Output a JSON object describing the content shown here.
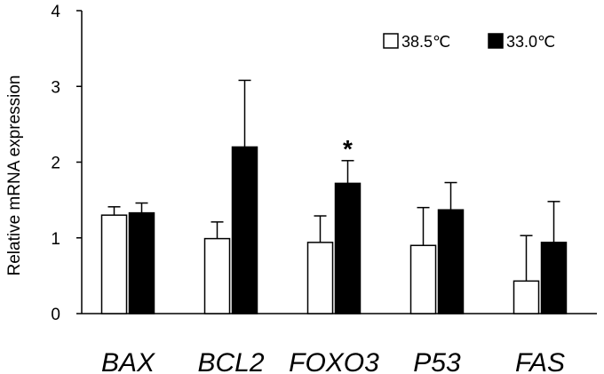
{
  "chart_data": {
    "type": "bar",
    "title": "",
    "xlabel": "",
    "ylabel": "Relative mRNA expression",
    "ylim": [
      0,
      4
    ],
    "yticks": [
      0,
      1,
      2,
      3,
      4
    ],
    "grid": false,
    "legend_position": "top-right",
    "categories": [
      "BAX",
      "BCL2",
      "FOXO3",
      "P53",
      "FAS"
    ],
    "series": [
      {
        "name": "38.5℃",
        "fill": "#ffffff",
        "stroke": "#000000",
        "values": [
          1.3,
          0.99,
          0.94,
          0.9,
          0.43
        ],
        "errors": [
          0.11,
          0.22,
          0.35,
          0.5,
          0.6
        ]
      },
      {
        "name": "33.0℃",
        "fill": "#000000",
        "stroke": "#000000",
        "values": [
          1.33,
          2.2,
          1.72,
          1.37,
          0.94
        ],
        "errors": [
          0.13,
          0.88,
          0.3,
          0.36,
          0.54
        ]
      }
    ],
    "annotations": [
      {
        "category": "FOXO3",
        "series": "33.0℃",
        "text": "*"
      }
    ]
  }
}
